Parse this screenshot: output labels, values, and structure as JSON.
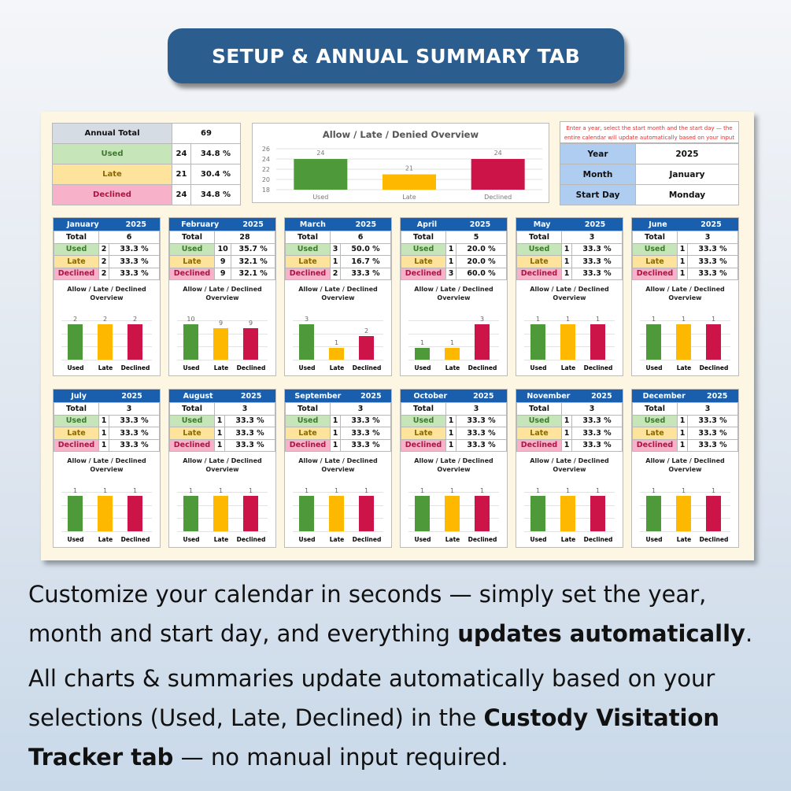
{
  "title": "SETUP & ANNUAL SUMMARY TAB",
  "annual": {
    "total_label": "Annual Total",
    "total": "69",
    "rows": [
      {
        "label": "Used",
        "count": "24",
        "pct": "34.8 %"
      },
      {
        "label": "Late",
        "count": "21",
        "pct": "30.4 %"
      },
      {
        "label": "Declined",
        "count": "24",
        "pct": "34.8 %"
      }
    ]
  },
  "main_chart_title": "Allow / Late / Denied Overview",
  "chart_data": {
    "type": "bar",
    "title": "Allow / Late / Denied Overview",
    "categories": [
      "Used",
      "Late",
      "Declined"
    ],
    "values": [
      24,
      21,
      24
    ],
    "ylim": [
      18,
      26
    ],
    "yticks": [
      18,
      20,
      22,
      24,
      26
    ],
    "colors": [
      "#4e9a3a",
      "#ffb800",
      "#cc1448"
    ]
  },
  "setup": {
    "note": "Enter a year, select the start month and the start day — the entire calendar will update automatically based on your input",
    "rows": [
      {
        "label": "Year",
        "value": "2025"
      },
      {
        "label": "Month",
        "value": "January"
      },
      {
        "label": "Start Day",
        "value": "Monday"
      }
    ]
  },
  "mini_chart_title": "Allow / Late / Declined Overview",
  "labels": {
    "total": "Total",
    "used": "Used",
    "late": "Late",
    "declined": "Declined"
  },
  "months": [
    {
      "name": "January",
      "year": "2025",
      "total": "6",
      "values": [
        2,
        2,
        2
      ],
      "pcts": [
        "33.3 %",
        "33.3 %",
        "33.3 %"
      ]
    },
    {
      "name": "February",
      "year": "2025",
      "total": "28",
      "values": [
        10,
        9,
        9
      ],
      "pcts": [
        "35.7 %",
        "32.1 %",
        "32.1 %"
      ]
    },
    {
      "name": "March",
      "year": "2025",
      "total": "6",
      "values": [
        3,
        1,
        2
      ],
      "pcts": [
        "50.0 %",
        "16.7 %",
        "33.3 %"
      ]
    },
    {
      "name": "April",
      "year": "2025",
      "total": "5",
      "values": [
        1,
        1,
        3
      ],
      "pcts": [
        "20.0 %",
        "20.0 %",
        "60.0 %"
      ]
    },
    {
      "name": "May",
      "year": "2025",
      "total": "3",
      "values": [
        1,
        1,
        1
      ],
      "pcts": [
        "33.3 %",
        "33.3 %",
        "33.3 %"
      ]
    },
    {
      "name": "June",
      "year": "2025",
      "total": "3",
      "values": [
        1,
        1,
        1
      ],
      "pcts": [
        "33.3 %",
        "33.3 %",
        "33.3 %"
      ]
    },
    {
      "name": "July",
      "year": "2025",
      "total": "3",
      "values": [
        1,
        1,
        1
      ],
      "pcts": [
        "33.3 %",
        "33.3 %",
        "33.3 %"
      ]
    },
    {
      "name": "August",
      "year": "2025",
      "total": "3",
      "values": [
        1,
        1,
        1
      ],
      "pcts": [
        "33.3 %",
        "33.3 %",
        "33.3 %"
      ]
    },
    {
      "name": "September",
      "year": "2025",
      "total": "3",
      "values": [
        1,
        1,
        1
      ],
      "pcts": [
        "33.3 %",
        "33.3 %",
        "33.3 %"
      ]
    },
    {
      "name": "October",
      "year": "2025",
      "total": "3",
      "values": [
        1,
        1,
        1
      ],
      "pcts": [
        "33.3 %",
        "33.3 %",
        "33.3 %"
      ]
    },
    {
      "name": "November",
      "year": "2025",
      "total": "3",
      "values": [
        1,
        1,
        1
      ],
      "pcts": [
        "33.3 %",
        "33.3 %",
        "33.3 %"
      ]
    },
    {
      "name": "December",
      "year": "2025",
      "total": "3",
      "values": [
        1,
        1,
        1
      ],
      "pcts": [
        "33.3 %",
        "33.3 %",
        "33.3 %"
      ]
    }
  ],
  "para1": {
    "text": "Customize your calendar in seconds — simply set the year, month and start day, and everything ",
    "bold": "updates automatically",
    "end": "."
  },
  "para2": {
    "text": "All charts & summaries update automatically based on your selections (Used, Late, Declined) in the ",
    "bold": "Custody Visitation Tracker tab",
    "end": " — no manual input required."
  }
}
